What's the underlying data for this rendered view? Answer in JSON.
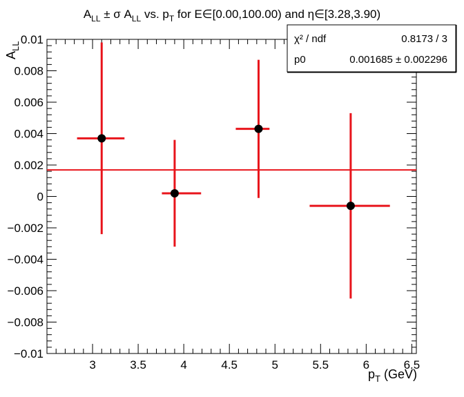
{
  "chart_data": {
    "type": "scatter",
    "title": {
      "parts": [
        {
          "t": "A"
        },
        {
          "t": "LL",
          "sub": true
        },
        {
          "t": " ± σ A"
        },
        {
          "t": "LL",
          "sub": true
        },
        {
          "t": " vs. p"
        },
        {
          "t": "T",
          "sub": true
        },
        {
          "t": " for E∈[0.00,100.00) and η∈[3.28,3.90)"
        }
      ]
    },
    "xlabel": {
      "parts": [
        {
          "t": "p"
        },
        {
          "t": "T",
          "sub": true
        },
        {
          "t": " (GeV)"
        }
      ]
    },
    "ylabel": {
      "parts": [
        {
          "t": "A"
        },
        {
          "t": "LL",
          "sub": true
        }
      ]
    },
    "xlim": [
      2.5,
      6.55
    ],
    "ylim": [
      -0.01,
      0.01
    ],
    "x_ticks": [
      "3",
      "3.5",
      "4",
      "4.5",
      "5",
      "5.5",
      "6",
      "6.5"
    ],
    "y_ticks": [
      "−0.01",
      "−0.008",
      "−0.006",
      "−0.004",
      "−0.002",
      "0",
      "0.002",
      "0.004",
      "0.006",
      "0.008",
      "0.01"
    ],
    "points": [
      {
        "x": 3.1,
        "y": 0.0037,
        "xerr_low": 0.27,
        "xerr_high": 0.25,
        "yerr": 0.0061
      },
      {
        "x": 3.9,
        "y": 0.0002,
        "xerr_low": 0.14,
        "xerr_high": 0.29,
        "yerr": 0.0034
      },
      {
        "x": 4.82,
        "y": 0.0043,
        "xerr_low": 0.25,
        "xerr_high": 0.12,
        "yerr": 0.0044
      },
      {
        "x": 5.83,
        "y": -0.0006,
        "xerr_low": 0.45,
        "xerr_high": 0.43,
        "yerr": 0.0059
      }
    ],
    "fit_line": {
      "y": 0.001685,
      "color": "#e8141b"
    },
    "stats_box": {
      "rows": [
        {
          "label": "χ² / ndf",
          "value": "0.8173 / 3"
        },
        {
          "label": "p0",
          "value": "0.001685 ± 0.002296"
        }
      ]
    },
    "colors": {
      "marker": "#000000",
      "error_bar": "#e8141b",
      "axis": "#000000"
    }
  }
}
